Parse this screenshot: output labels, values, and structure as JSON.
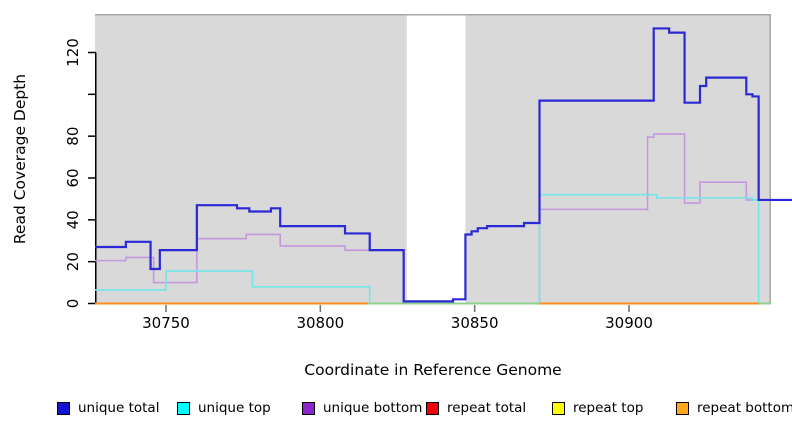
{
  "panel": {
    "background_color": "#d9d9d9",
    "gap_background_color": "#ffffff",
    "border_color": "#a8a8a8"
  },
  "axes": {
    "x": {
      "title": "Coordinate in Reference Genome",
      "ticks": [
        30750,
        30800,
        30850,
        30900
      ],
      "tick_labels": [
        "30750",
        "30800",
        "30850",
        "30900"
      ]
    },
    "y": {
      "title": "Read Coverage Depth",
      "ticks": [
        0,
        20,
        40,
        60,
        80,
        100,
        120
      ],
      "tick_labels": [
        "0",
        "20",
        "40",
        "60",
        "80",
        "",
        "120"
      ]
    }
  },
  "legend": {
    "items": [
      {
        "label": "unique total",
        "color": "#1212cf"
      },
      {
        "label": "unique top",
        "color": "#00ffff"
      },
      {
        "label": "unique bottom",
        "color": "#8d22cf"
      },
      {
        "label": "repeat total",
        "color": "#f40000"
      },
      {
        "label": "repeat top",
        "color": "#ffff00"
      },
      {
        "label": "repeat bottom",
        "color": "#ffa51e"
      }
    ]
  },
  "chart_data": {
    "type": "line",
    "subtype": "step-coverage-plot",
    "xlabel": "Coordinate in Reference Genome",
    "ylabel": "Read Coverage Depth",
    "x_range": [
      30727,
      30946
    ],
    "y_range": [
      0,
      138
    ],
    "grid": "off",
    "legend_position": "bottom",
    "gap_region": {
      "from": 30828,
      "to": 30847
    },
    "series": [
      {
        "name": "unique total",
        "line_color": "#2b28d5",
        "line_width": 2.2,
        "segments": [
          [
            30727,
            30737,
            27
          ],
          [
            30737,
            30745,
            29.5
          ],
          [
            30745,
            30748,
            16.5
          ],
          [
            30748,
            30760,
            25.5
          ],
          [
            30760,
            30773,
            47
          ],
          [
            30773,
            30777,
            45.5
          ],
          [
            30777,
            30784,
            44
          ],
          [
            30784,
            30787,
            45.5
          ],
          [
            30787,
            30808,
            37
          ],
          [
            30808,
            30816,
            33.5
          ],
          [
            30816,
            30827,
            25.5
          ],
          [
            30827,
            30843,
            1
          ],
          [
            30843,
            30847,
            2
          ],
          [
            30847,
            30849,
            33
          ],
          [
            30849,
            30851,
            34.5
          ],
          [
            30851,
            30854,
            36
          ],
          [
            30854,
            30866,
            37
          ],
          [
            30866,
            30871,
            38.5
          ],
          [
            30871,
            30908,
            97
          ],
          [
            30908,
            30913,
            131.5
          ],
          [
            30913,
            30918,
            129.5
          ],
          [
            30918,
            30923,
            96
          ],
          [
            30923,
            30925,
            104
          ],
          [
            30925,
            30938,
            108
          ],
          [
            30938,
            30940,
            100
          ],
          [
            30940,
            30942,
            99
          ],
          [
            30942,
            30953,
            49.5
          ]
        ]
      },
      {
        "name": "unique top",
        "line_color": "#72e6e9",
        "line_width": 1.6,
        "segments": [
          [
            30727,
            30750,
            6.5
          ],
          [
            30750,
            30778,
            15.5
          ],
          [
            30778,
            30816,
            8
          ],
          [
            30816,
            30871,
            0
          ],
          [
            30871,
            30909,
            52
          ],
          [
            30909,
            30940,
            50.5
          ],
          [
            30940,
            30942,
            49.5
          ],
          [
            30942,
            30946,
            0
          ]
        ]
      },
      {
        "name": "unique bottom",
        "line_color": "#c498de",
        "line_width": 1.6,
        "segments": [
          [
            30727,
            30737,
            20.5
          ],
          [
            30737,
            30746,
            22
          ],
          [
            30746,
            30760,
            10
          ],
          [
            30760,
            30776,
            31
          ],
          [
            30776,
            30787,
            33
          ],
          [
            30787,
            30808,
            27.5
          ],
          [
            30808,
            30827,
            25.5
          ],
          [
            30827,
            30871,
            0
          ],
          [
            30871,
            30906,
            45
          ],
          [
            30906,
            30908,
            79.5
          ],
          [
            30908,
            30918,
            81
          ],
          [
            30918,
            30923,
            48
          ],
          [
            30923,
            30938,
            58
          ],
          [
            30938,
            30953,
            49.5
          ]
        ]
      },
      {
        "name": "repeat total",
        "line_color": "#f40000",
        "line_width": 1.6,
        "rendered_as": "baseline",
        "segments": [
          [
            30727,
            30946,
            0
          ]
        ]
      },
      {
        "name": "repeat top",
        "line_color": "#ffff00",
        "line_width": 1.6,
        "rendered_as": "baseline",
        "segments": [
          [
            30727,
            30946,
            0
          ]
        ]
      },
      {
        "name": "repeat bottom",
        "line_color": "#ff8c1c",
        "line_width": 2.0,
        "rendered_as": "baseline",
        "segments": [
          [
            30727,
            30946,
            0
          ]
        ]
      }
    ],
    "baseline_render": [
      {
        "from": 30727,
        "to": 30815.5,
        "color": "#ff8c1c"
      },
      {
        "from": 30815.5,
        "to": 30871,
        "color": "#8fcf8f"
      },
      {
        "from": 30871,
        "to": 30942,
        "color": "#ff8c1c"
      },
      {
        "from": 30942,
        "to": 30946,
        "color": "#8fcf8f"
      }
    ]
  }
}
